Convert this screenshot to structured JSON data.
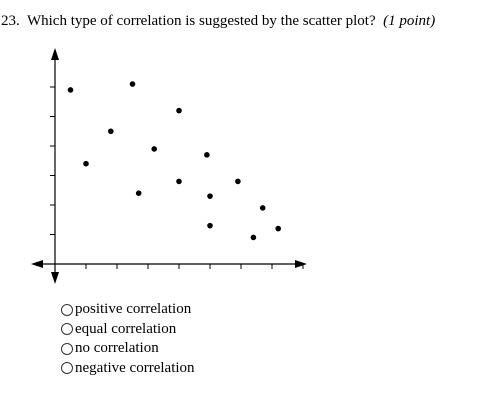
{
  "question": {
    "number": "23.",
    "text": "Which type of correlation is suggested by the scatter plot?",
    "points": "(1 point)"
  },
  "chart_data": {
    "type": "scatter",
    "title": "",
    "xlabel": "",
    "ylabel": "",
    "xlim": [
      0,
      8.5
    ],
    "ylim": [
      0,
      7
    ],
    "grid": false,
    "x_ticks": [
      1,
      2,
      3,
      4,
      5,
      6,
      7,
      8
    ],
    "y_ticks": [
      1,
      2,
      3,
      4,
      5,
      6
    ],
    "points": [
      {
        "x": 0.5,
        "y": 5.9
      },
      {
        "x": 1.0,
        "y": 3.4
      },
      {
        "x": 1.8,
        "y": 4.5
      },
      {
        "x": 2.5,
        "y": 6.1
      },
      {
        "x": 2.7,
        "y": 2.4
      },
      {
        "x": 3.2,
        "y": 3.9
      },
      {
        "x": 4.0,
        "y": 5.2
      },
      {
        "x": 4.0,
        "y": 2.8
      },
      {
        "x": 4.9,
        "y": 3.7
      },
      {
        "x": 5.0,
        "y": 2.3
      },
      {
        "x": 5.0,
        "y": 1.3
      },
      {
        "x": 5.9,
        "y": 2.8
      },
      {
        "x": 6.4,
        "y": 0.9
      },
      {
        "x": 6.7,
        "y": 1.9
      },
      {
        "x": 7.2,
        "y": 1.2
      }
    ]
  },
  "options": [
    {
      "label": "positive correlation",
      "selected": false
    },
    {
      "label": "equal correlation",
      "selected": false
    },
    {
      "label": "no correlation",
      "selected": false
    },
    {
      "label": "negative correlation",
      "selected": false
    }
  ]
}
